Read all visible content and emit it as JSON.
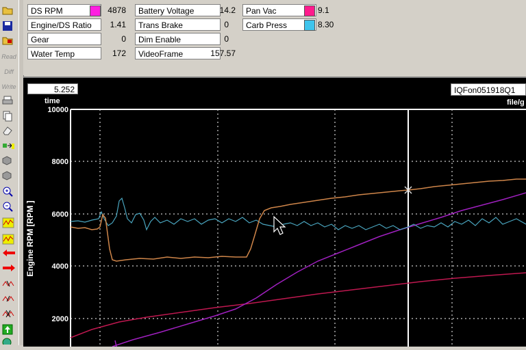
{
  "toolbar": {
    "read_label": "Read",
    "diff_label": "Diff",
    "write_label": "Write"
  },
  "channels": {
    "ds_rpm": {
      "label": "DS RPM",
      "value": "4878",
      "color": "#ff20e0"
    },
    "engine_ds_ratio": {
      "label": "Engine/DS Ratio",
      "value": "1.41"
    },
    "gear": {
      "label": "Gear",
      "value": "0"
    },
    "water_temp": {
      "label": "Water Temp",
      "value": "172"
    },
    "battery_voltage": {
      "label": "Battery Voltage",
      "value": "14.2"
    },
    "trans_brake": {
      "label": "Trans Brake",
      "value": "0"
    },
    "dim_enable": {
      "label": "Dim Enable",
      "value": "0"
    },
    "video_frame": {
      "label": "VideoFrame",
      "value": "157.57"
    },
    "pan_vac": {
      "label": "Pan Vac",
      "value": "9.1",
      "color": "#ff1a8c"
    },
    "carb_press": {
      "label": "Carb Press",
      "value": "8.30",
      "color": "#3fc4ec"
    }
  },
  "plot": {
    "time_value": "5.252",
    "time_label": "time",
    "file_value": "IQFon051918Q1",
    "file_label": "file/g",
    "y_axis_label": "Engine RPM [RPM   ]",
    "y_ticks": [
      "10000",
      "8000",
      "6000",
      "4000",
      "2000"
    ],
    "colors": {
      "engine_rpm": "#d0864a",
      "carb_press": "#4aa6c0",
      "ds_rpm": "#a020c0",
      "pan_vac": "#c01850"
    }
  }
}
